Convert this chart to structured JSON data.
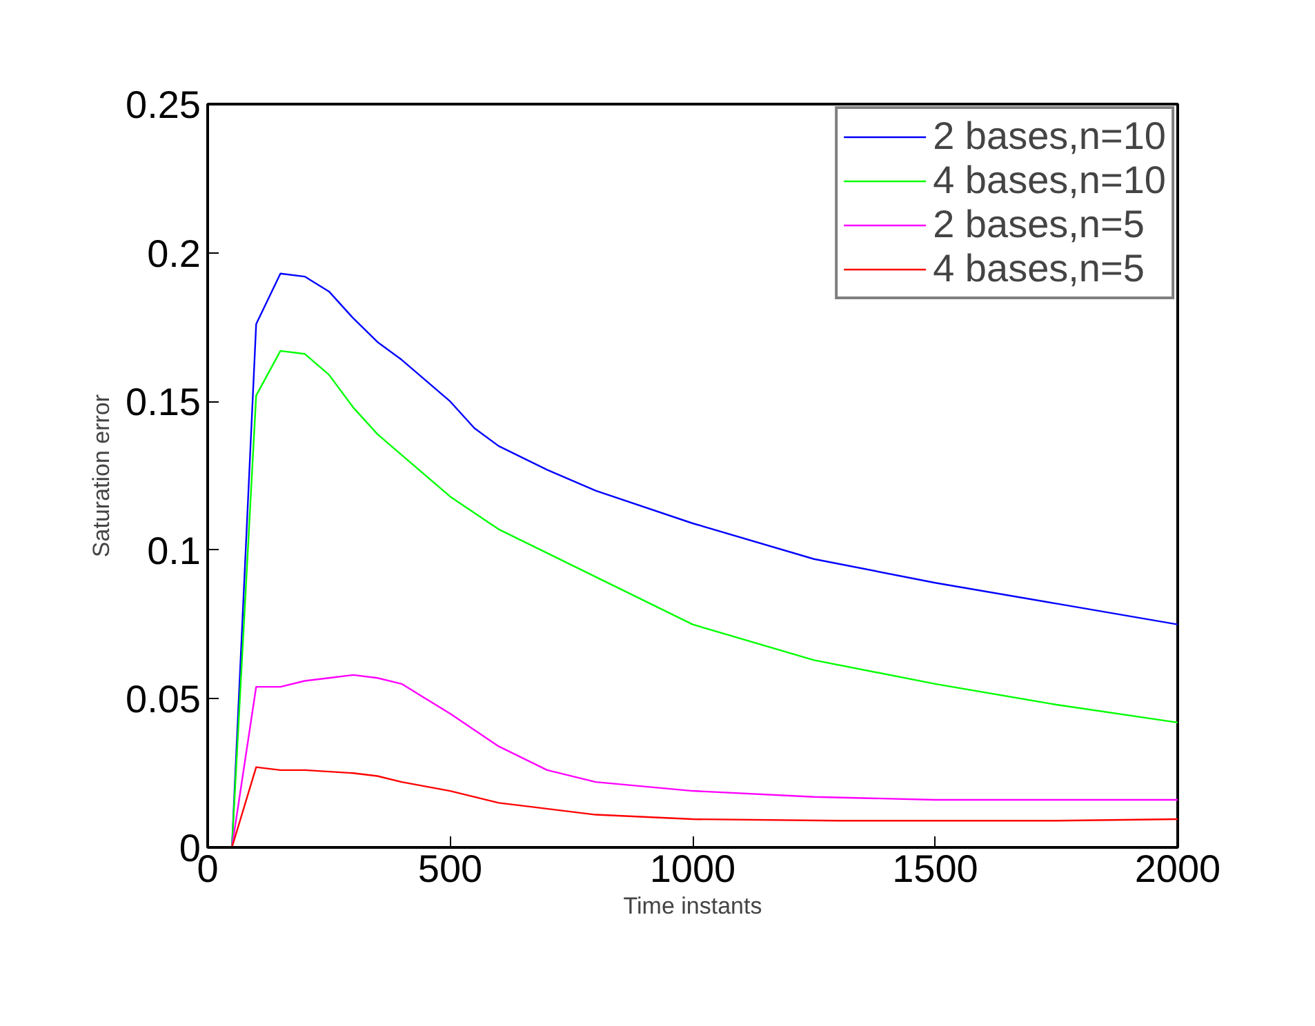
{
  "chart_data": {
    "type": "line",
    "xlabel": "Time instants",
    "ylabel": "Saturation error",
    "xlim": [
      0,
      2000
    ],
    "ylim": [
      0,
      0.25
    ],
    "xticks": [
      0,
      500,
      1000,
      1500,
      2000
    ],
    "yticks": [
      0,
      0.05,
      0.1,
      0.15,
      0.2,
      0.25
    ],
    "grid": false,
    "legend": "top right",
    "series": [
      {
        "name": "2 bases,n=10",
        "color": "#0000ff",
        "x": [
          50,
          100,
          150,
          200,
          250,
          300,
          350,
          400,
          500,
          550,
          600,
          700,
          800,
          1000,
          1250,
          1500,
          1750,
          2000
        ],
        "values": [
          0,
          0.176,
          0.193,
          0.192,
          0.187,
          0.178,
          0.17,
          0.164,
          0.15,
          0.141,
          0.135,
          0.127,
          0.12,
          0.109,
          0.097,
          0.089,
          0.082,
          0.075
        ]
      },
      {
        "name": "4 bases,n=10",
        "color": "#00ff00",
        "x": [
          50,
          100,
          150,
          200,
          250,
          300,
          350,
          400,
          500,
          600,
          700,
          800,
          1000,
          1250,
          1500,
          1750,
          2000
        ],
        "values": [
          0,
          0.152,
          0.167,
          0.166,
          0.159,
          0.148,
          0.139,
          0.132,
          0.118,
          0.107,
          0.099,
          0.091,
          0.075,
          0.063,
          0.055,
          0.048,
          0.042
        ]
      },
      {
        "name": "2 bases,n=5",
        "color": "#ff00ff",
        "x": [
          50,
          100,
          150,
          200,
          250,
          300,
          350,
          400,
          450,
          500,
          600,
          700,
          800,
          1000,
          1250,
          1500,
          2000
        ],
        "values": [
          0,
          0.054,
          0.054,
          0.056,
          0.057,
          0.058,
          0.057,
          0.055,
          0.05,
          0.045,
          0.034,
          0.026,
          0.022,
          0.019,
          0.017,
          0.016,
          0.016
        ]
      },
      {
        "name": "4 bases,n=5",
        "color": "#ff0000",
        "x": [
          50,
          100,
          150,
          200,
          300,
          350,
          400,
          500,
          600,
          800,
          1000,
          1300,
          1750,
          2000
        ],
        "values": [
          0,
          0.027,
          0.026,
          0.026,
          0.025,
          0.024,
          0.022,
          0.019,
          0.015,
          0.011,
          0.0095,
          0.009,
          0.009,
          0.0095
        ]
      }
    ]
  }
}
